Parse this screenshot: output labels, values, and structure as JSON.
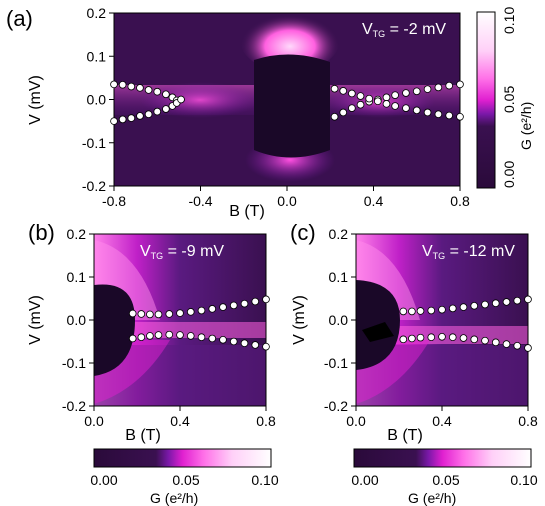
{
  "colors": {
    "colormap": [
      "#2a0a3a",
      "#3a1050",
      "#5a1a80",
      "#8a20b0",
      "#e020d0",
      "#ff60e0",
      "#ffc8f8",
      "#ffffff"
    ],
    "marker_fill": "#ffffff",
    "marker_stroke": "#000000",
    "dark_region": "#1a0828"
  },
  "chart_data": [
    {
      "id": "a",
      "type": "heatmap",
      "panel_label": "(a)",
      "annotation": "V",
      "annotation_sub": "TG",
      "annotation_value": " = -2 mV",
      "xlabel": "B (T)",
      "ylabel": "V (mV)",
      "xlim": [
        -0.8,
        0.8
      ],
      "ylim": [
        -0.2,
        0.2
      ],
      "xticks": [
        -0.8,
        -0.4,
        0.0,
        0.4,
        0.8
      ],
      "xtick_labels": [
        "-0.8",
        "-0.4",
        "0.0",
        "0.4",
        "0.8"
      ],
      "yticks": [
        -0.2,
        -0.1,
        0.0,
        0.1,
        0.2
      ],
      "ytick_labels": [
        "-0.2",
        "-0.1",
        "0.0",
        "0.1",
        "0.2"
      ],
      "series": [
        {
          "x": [
            -0.8,
            -0.76,
            -0.72,
            -0.68,
            -0.64,
            -0.6,
            -0.56,
            -0.53,
            -0.51,
            -0.49
          ],
          "y": [
            0.035,
            0.034,
            0.03,
            0.027,
            0.022,
            0.018,
            0.012,
            0.005,
            -0.002,
            0.0
          ]
        },
        {
          "x": [
            -0.8,
            -0.76,
            -0.72,
            -0.68,
            -0.64,
            -0.6,
            -0.56,
            -0.53,
            -0.51,
            -0.49
          ],
          "y": [
            -0.05,
            -0.046,
            -0.043,
            -0.038,
            -0.034,
            -0.028,
            -0.022,
            -0.015,
            -0.008,
            0.0
          ]
        },
        {
          "x": [
            0.22,
            0.26,
            0.3,
            0.34,
            0.38,
            0.42,
            0.46,
            0.5,
            0.55,
            0.6,
            0.65,
            0.7,
            0.75,
            0.8
          ],
          "y": [
            -0.04,
            -0.03,
            -0.02,
            -0.012,
            -0.005,
            0.0,
            0.005,
            0.01,
            0.015,
            0.019,
            0.024,
            0.028,
            0.032,
            0.035
          ]
        },
        {
          "x": [
            0.22,
            0.26,
            0.3,
            0.34,
            0.38,
            0.42,
            0.46,
            0.5,
            0.55,
            0.6,
            0.65,
            0.7,
            0.75,
            0.8
          ],
          "y": [
            0.025,
            0.02,
            0.014,
            0.008,
            0.002,
            -0.004,
            -0.01,
            -0.015,
            -0.02,
            -0.025,
            -0.03,
            -0.034,
            -0.037,
            -0.04
          ]
        }
      ]
    },
    {
      "id": "b",
      "type": "heatmap",
      "panel_label": "(b)",
      "annotation": "V",
      "annotation_sub": "TG",
      "annotation_value": " = -9 mV",
      "xlabel": "B (T)",
      "ylabel": "V (mV)",
      "xlim": [
        0.0,
        0.8
      ],
      "ylim": [
        -0.2,
        0.2
      ],
      "xticks": [
        0.0,
        0.4,
        0.8
      ],
      "xtick_labels": [
        "0.0",
        "0.4",
        "0.8"
      ],
      "yticks": [
        -0.2,
        -0.1,
        0.0,
        0.1,
        0.2
      ],
      "ytick_labels": [
        "-0.2",
        "-0.1",
        "0.0",
        "0.1",
        "0.2"
      ],
      "series": [
        {
          "x": [
            0.18,
            0.22,
            0.26,
            0.3,
            0.35,
            0.4,
            0.45,
            0.5,
            0.55,
            0.6,
            0.65,
            0.7,
            0.75,
            0.8
          ],
          "y": [
            0.015,
            0.014,
            0.013,
            0.013,
            0.014,
            0.016,
            0.019,
            0.022,
            0.026,
            0.03,
            0.034,
            0.038,
            0.043,
            0.048
          ]
        },
        {
          "x": [
            0.18,
            0.22,
            0.26,
            0.3,
            0.35,
            0.4,
            0.45,
            0.5,
            0.55,
            0.6,
            0.65,
            0.7,
            0.75,
            0.8
          ],
          "y": [
            -0.043,
            -0.04,
            -0.037,
            -0.035,
            -0.034,
            -0.035,
            -0.037,
            -0.04,
            -0.043,
            -0.046,
            -0.05,
            -0.054,
            -0.058,
            -0.062
          ]
        }
      ]
    },
    {
      "id": "c",
      "type": "heatmap",
      "panel_label": "(c)",
      "annotation": "V",
      "annotation_sub": "TG",
      "annotation_value": " = -12 mV",
      "xlabel": "B (T)",
      "ylabel": "V (mV)",
      "xlim": [
        0.0,
        0.8
      ],
      "ylim": [
        -0.2,
        0.2
      ],
      "xticks": [
        0.0,
        0.4,
        0.8
      ],
      "xtick_labels": [
        "0.0",
        "0.4",
        "0.8"
      ],
      "yticks": [
        -0.2,
        -0.1,
        0.0,
        0.1,
        0.2
      ],
      "ytick_labels": [
        "-0.2",
        "-0.1",
        "0.0",
        "0.1",
        "0.2"
      ],
      "series": [
        {
          "x": [
            0.22,
            0.26,
            0.3,
            0.35,
            0.4,
            0.45,
            0.5,
            0.55,
            0.6,
            0.65,
            0.7,
            0.75,
            0.8
          ],
          "y": [
            0.02,
            0.02,
            0.021,
            0.022,
            0.024,
            0.027,
            0.03,
            0.033,
            0.036,
            0.039,
            0.042,
            0.045,
            0.048
          ]
        },
        {
          "x": [
            0.22,
            0.26,
            0.3,
            0.35,
            0.4,
            0.45,
            0.5,
            0.55,
            0.6,
            0.65,
            0.7,
            0.75,
            0.8
          ],
          "y": [
            -0.045,
            -0.043,
            -0.041,
            -0.04,
            -0.039,
            -0.04,
            -0.042,
            -0.045,
            -0.048,
            -0.052,
            -0.056,
            -0.06,
            -0.065
          ]
        }
      ]
    }
  ],
  "colorbars": [
    {
      "id": "right",
      "label": "G (e²/h)",
      "ticks": [
        "0.00",
        "0.05",
        "0.10"
      ],
      "orientation": "vertical"
    },
    {
      "id": "bottom-left",
      "label": "G (e²/h)",
      "ticks": [
        "0.00",
        "0.05",
        "0.10"
      ],
      "orientation": "horizontal"
    },
    {
      "id": "bottom-right",
      "label": "G (e²/h)",
      "ticks": [
        "0.00",
        "0.05",
        "0.10"
      ],
      "orientation": "horizontal"
    }
  ]
}
